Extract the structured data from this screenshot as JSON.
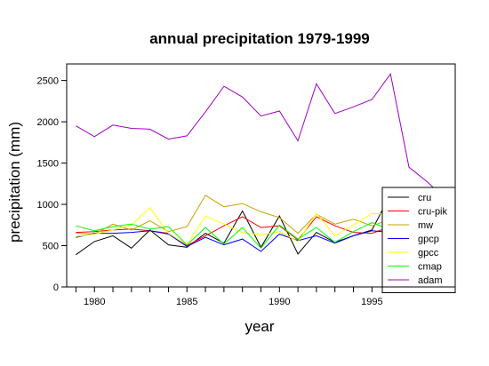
{
  "chart_data": {
    "type": "line",
    "title": "annual precipitation 1979-1999",
    "xlabel": "year",
    "ylabel": "precipitation (mm)",
    "xlim": [
      1978.5,
      1999.5
    ],
    "ylim": [
      0,
      2700
    ],
    "x_ticks": [
      "1980",
      "1985",
      "1990",
      "1995"
    ],
    "y_ticks": [
      "0",
      "500",
      "1000",
      "1500",
      "2000",
      "2500"
    ],
    "legend_position": "bottom-right",
    "x": [
      1979,
      1980,
      1981,
      1982,
      1983,
      1984,
      1985,
      1986,
      1987,
      1988,
      1989,
      1990,
      1991,
      1992,
      1993,
      1994,
      1995,
      1996,
      1997,
      1998,
      1999
    ],
    "series": [
      {
        "name": "cru",
        "color": "#000000",
        "values": [
          390,
          550,
          620,
          470,
          690,
          510,
          480,
          650,
          530,
          920,
          480,
          860,
          400,
          660,
          540,
          620,
          690,
          1120,
          null,
          null,
          null
        ]
      },
      {
        "name": "cru-pik",
        "color": "#ff0000",
        "values": [
          660,
          670,
          690,
          700,
          680,
          650,
          500,
          620,
          740,
          850,
          720,
          740,
          570,
          850,
          740,
          660,
          650,
          730,
          null,
          null,
          null
        ]
      },
      {
        "name": "mw",
        "color": "#c8a000",
        "values": [
          650,
          640,
          760,
          690,
          800,
          670,
          730,
          1110,
          970,
          1010,
          910,
          840,
          650,
          880,
          760,
          820,
          740,
          820,
          null,
          null,
          null
        ]
      },
      {
        "name": "gpcp",
        "color": "#0000ff",
        "values": [
          600,
          650,
          650,
          660,
          680,
          640,
          490,
          600,
          510,
          580,
          430,
          640,
          560,
          620,
          530,
          620,
          680,
          660,
          null,
          null,
          null
        ]
      },
      {
        "name": "gpcc",
        "color": "#ffff00",
        "values": [
          610,
          640,
          690,
          750,
          960,
          650,
          510,
          860,
          760,
          660,
          630,
          670,
          550,
          890,
          620,
          750,
          890,
          880,
          null,
          null,
          null
        ]
      },
      {
        "name": "cmap",
        "color": "#00ff00",
        "values": [
          740,
          680,
          730,
          760,
          700,
          730,
          510,
          720,
          520,
          720,
          470,
          750,
          580,
          720,
          540,
          670,
          780,
          690,
          null,
          null,
          null
        ]
      },
      {
        "name": "adam",
        "color": "#a000c0",
        "values": [
          1950,
          1820,
          1960,
          1920,
          1910,
          1790,
          1830,
          2120,
          2430,
          2300,
          2070,
          2130,
          1770,
          2460,
          2100,
          2180,
          2270,
          2580,
          1450,
          1270,
          1060
        ]
      }
    ]
  }
}
